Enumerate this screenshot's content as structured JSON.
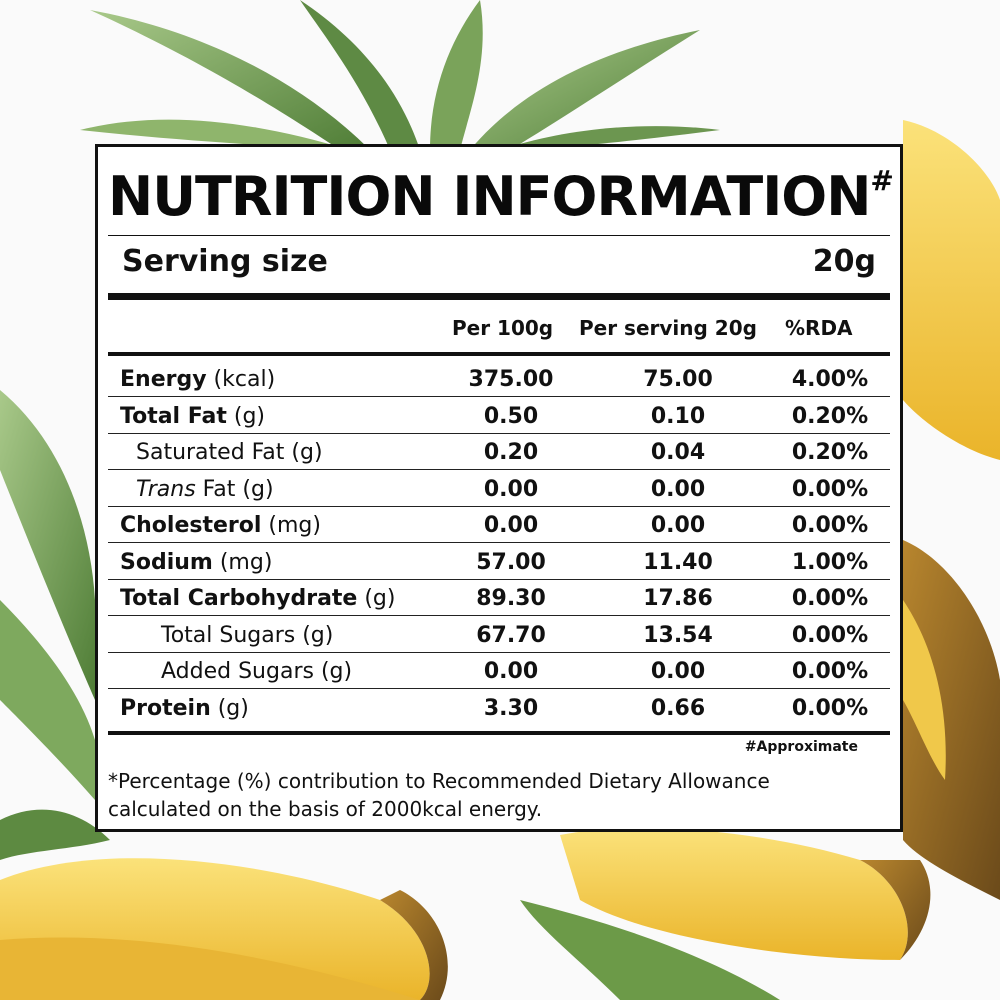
{
  "label": {
    "title": "NUTRITION INFORMATION",
    "title_mark": "#",
    "serving_label": "Serving size",
    "serving_value": "20g",
    "columns": [
      "Per 100g",
      "Per serving 20g",
      "%RDA"
    ],
    "rows": [
      {
        "bold": "Energy",
        "unit": " (kcal)",
        "italic": "",
        "rest": "",
        "indent": 0,
        "values": [
          "375.00",
          "75.00",
          "4.00%"
        ]
      },
      {
        "bold": "Total Fat",
        "unit": " (g)",
        "italic": "",
        "rest": "",
        "indent": 0,
        "values": [
          "0.50",
          "0.10",
          "0.20%"
        ]
      },
      {
        "bold": "",
        "unit": "",
        "italic": "",
        "rest": "Saturated Fat (g)",
        "indent": 1,
        "values": [
          "0.20",
          "0.04",
          "0.20%"
        ]
      },
      {
        "bold": "",
        "unit": "",
        "italic": "Trans",
        "rest": " Fat (g)",
        "indent": 1,
        "values": [
          "0.00",
          "0.00",
          "0.00%"
        ]
      },
      {
        "bold": "Cholesterol",
        "unit": " (mg)",
        "italic": "",
        "rest": "",
        "indent": 0,
        "values": [
          "0.00",
          "0.00",
          "0.00%"
        ]
      },
      {
        "bold": "Sodium",
        "unit": " (mg)",
        "italic": "",
        "rest": "",
        "indent": 0,
        "values": [
          "57.00",
          "11.40",
          "1.00%"
        ]
      },
      {
        "bold": "Total Carbohydrate",
        "unit": " (g)",
        "italic": "",
        "rest": "",
        "indent": 0,
        "values": [
          "89.30",
          "17.86",
          "0.00%"
        ]
      },
      {
        "bold": "",
        "unit": "",
        "italic": "",
        "rest": "Total Sugars (g)",
        "indent": 2,
        "values": [
          "67.70",
          "13.54",
          "0.00%"
        ]
      },
      {
        "bold": "",
        "unit": "",
        "italic": "",
        "rest": "Added Sugars (g)",
        "indent": 2,
        "values": [
          "0.00",
          "0.00",
          "0.00%"
        ]
      },
      {
        "bold": "Protein",
        "unit": " (g)",
        "italic": "",
        "rest": "",
        "indent": 0,
        "values": [
          "3.30",
          "0.66",
          "0.00%"
        ]
      }
    ],
    "approx_note": "#Approximate",
    "footnote": "*Percentage (%) contribution to Recommended Dietary Allowance calculated on the basis of 2000kcal energy."
  },
  "colors": {
    "label_border": "#111111",
    "background": "#fafafa",
    "pineapple_flesh": "#f3c63a",
    "pineapple_leaf": "#6f9a4e"
  },
  "icons": [
    "pineapple-crown-image",
    "pineapple-slice-image",
    "leaf-image"
  ]
}
